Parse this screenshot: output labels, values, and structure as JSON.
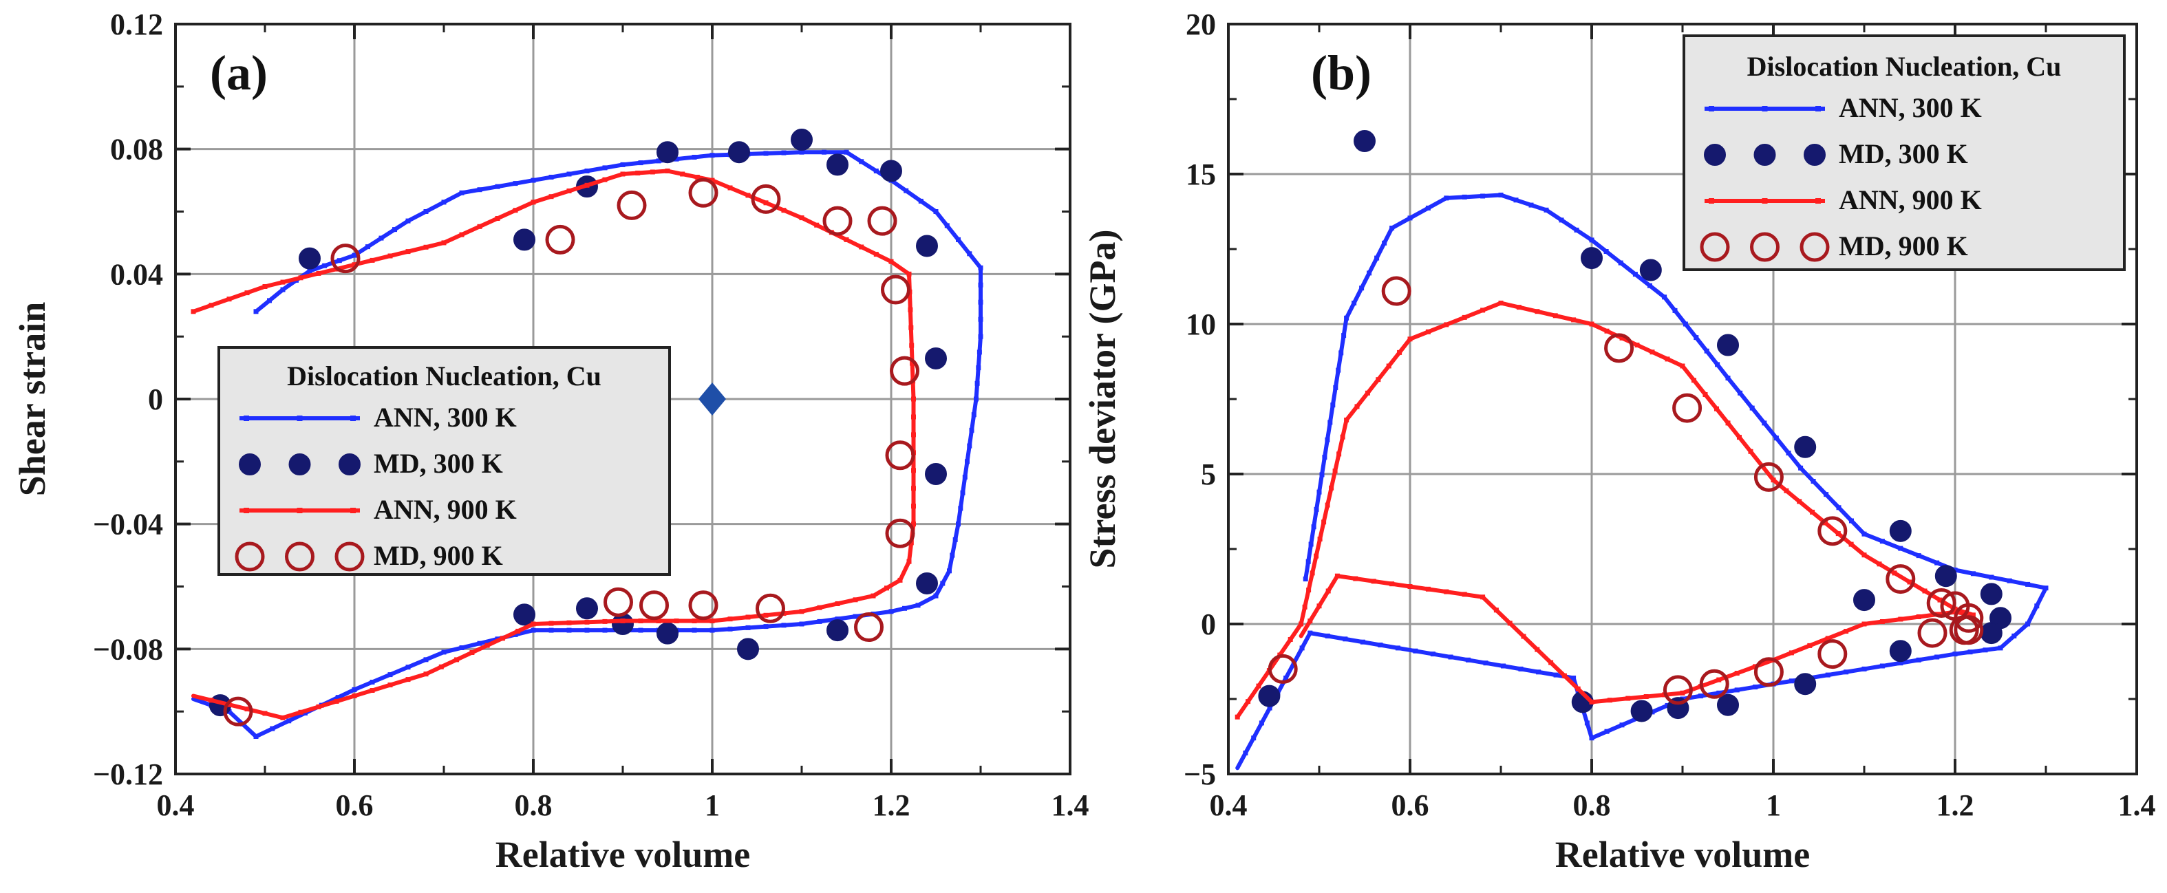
{
  "chart_data": [
    {
      "type": "line",
      "panel_label": "(a)",
      "xlabel": "Relative volume",
      "ylabel": "Shear strain",
      "xlim": [
        0.4,
        1.4
      ],
      "ylim": [
        -0.12,
        0.12
      ],
      "xticks": [
        0.4,
        0.6,
        0.8,
        1,
        1.2,
        1.4
      ],
      "xtick_labels": [
        "0.4",
        "0.6",
        "0.8",
        "1",
        "1.2",
        "1.4"
      ],
      "yticks": [
        -0.12,
        -0.08,
        -0.04,
        0,
        0.04,
        0.08,
        0.12
      ],
      "ytick_labels": [
        "−0.12",
        "−0.08",
        "−0.04",
        "0",
        "0.04",
        "0.08",
        "0.12"
      ],
      "grid": true,
      "legend": {
        "title": "Dislocation Nucleation, Cu",
        "entries": [
          "ANN, 300 K",
          "MD, 300 K",
          "ANN, 900 K",
          "MD, 900 K"
        ]
      },
      "marker_point": {
        "x": 1.0,
        "y": 0.0,
        "color": "#1f4fa8"
      },
      "series": [
        {
          "name": "ANN, 300 K",
          "style": "line",
          "color": "#1f2fff",
          "x": [
            0.49,
            0.52,
            0.55,
            0.6,
            0.66,
            0.72,
            0.8,
            0.9,
            1.0,
            1.1,
            1.15,
            1.2,
            1.25,
            1.3,
            1.3,
            1.295,
            1.285,
            1.275,
            1.265,
            1.25,
            1.23,
            1.2,
            1.1,
            1.0,
            0.9,
            0.8,
            0.7,
            0.6,
            0.49,
            0.46,
            0.42
          ],
          "y": [
            0.028,
            0.035,
            0.041,
            0.046,
            0.057,
            0.066,
            0.07,
            0.075,
            0.078,
            0.079,
            0.079,
            0.07,
            0.06,
            0.042,
            0.02,
            0.0,
            -0.02,
            -0.04,
            -0.055,
            -0.063,
            -0.066,
            -0.068,
            -0.072,
            -0.074,
            -0.074,
            -0.074,
            -0.081,
            -0.093,
            -0.108,
            -0.1,
            -0.096
          ]
        },
        {
          "name": "MD, 300 K",
          "style": "filled",
          "color": "#15196e",
          "x": [
            0.55,
            0.79,
            0.86,
            0.95,
            1.03,
            1.1,
            1.14,
            1.2,
            1.24,
            1.25,
            1.25,
            1.24,
            1.14,
            1.04,
            0.95,
            0.9,
            0.86,
            0.79,
            0.45
          ],
          "y": [
            0.045,
            0.051,
            0.068,
            0.079,
            0.079,
            0.083,
            0.075,
            0.073,
            0.049,
            0.013,
            -0.024,
            -0.059,
            -0.074,
            -0.08,
            -0.075,
            -0.072,
            -0.067,
            -0.069,
            -0.098
          ]
        },
        {
          "name": "ANN, 900 K",
          "style": "line",
          "color": "#ff1f1f",
          "x": [
            0.42,
            0.5,
            0.6,
            0.7,
            0.8,
            0.9,
            0.95,
            1.0,
            1.1,
            1.2,
            1.22,
            1.225,
            1.225,
            1.22,
            1.21,
            1.18,
            1.1,
            1.0,
            0.9,
            0.8,
            0.68,
            0.52,
            0.42
          ],
          "y": [
            0.028,
            0.036,
            0.043,
            0.05,
            0.063,
            0.072,
            0.073,
            0.07,
            0.058,
            0.044,
            0.04,
            0.0,
            -0.04,
            -0.052,
            -0.058,
            -0.063,
            -0.068,
            -0.071,
            -0.071,
            -0.072,
            -0.088,
            -0.102,
            -0.095
          ]
        },
        {
          "name": "MD, 900 K",
          "style": "open",
          "color": "#a8191e",
          "x": [
            0.59,
            0.83,
            0.91,
            0.99,
            1.06,
            1.14,
            1.19,
            1.205,
            1.215,
            1.21,
            1.21,
            1.175,
            1.065,
            0.99,
            0.935,
            0.895,
            0.47
          ],
          "y": [
            0.045,
            0.051,
            0.062,
            0.066,
            0.064,
            0.057,
            0.057,
            0.035,
            0.009,
            -0.018,
            -0.043,
            -0.073,
            -0.067,
            -0.066,
            -0.066,
            -0.065,
            -0.1
          ]
        }
      ]
    },
    {
      "type": "line",
      "panel_label": "(b)",
      "xlabel": "Relative volume",
      "ylabel": "Stress deviator (GPa)",
      "xlim": [
        0.4,
        1.4
      ],
      "ylim": [
        -5,
        20
      ],
      "xticks": [
        0.4,
        0.6,
        0.8,
        1,
        1.2,
        1.4
      ],
      "xtick_labels": [
        "0.4",
        "0.6",
        "0.8",
        "1",
        "1.2",
        "1.4"
      ],
      "yticks": [
        -5,
        0,
        5,
        10,
        15,
        20
      ],
      "ytick_labels": [
        "−5",
        "0",
        "5",
        "10",
        "15",
        "20"
      ],
      "grid": true,
      "legend": {
        "title": "Dislocation Nucleation, Cu",
        "entries": [
          "ANN, 300 K",
          "MD, 300 K",
          "ANN, 900 K",
          "MD, 900 K"
        ]
      },
      "series": [
        {
          "name": "ANN, 300 K",
          "style": "line",
          "color": "#1f2fff",
          "x": [
            0.485,
            0.53,
            0.58,
            0.64,
            0.7,
            0.75,
            0.8,
            0.88,
            0.95,
            1.03,
            1.1,
            1.2,
            1.3,
            1.28,
            1.25,
            1.2,
            1.1,
            0.9,
            0.8,
            0.78,
            0.49,
            0.41
          ],
          "y": [
            1.5,
            10.2,
            13.2,
            14.2,
            14.3,
            13.8,
            12.8,
            10.9,
            8.2,
            5.2,
            3.0,
            1.8,
            1.2,
            0.0,
            -0.8,
            -1.0,
            -1.5,
            -2.5,
            -3.8,
            -1.8,
            -0.3,
            -4.8
          ]
        },
        {
          "name": "MD, 300 K",
          "style": "filled",
          "color": "#15196e",
          "x": [
            0.55,
            0.8,
            0.865,
            0.95,
            1.035,
            1.14,
            1.19,
            1.24,
            1.25,
            1.24,
            1.14,
            1.1,
            1.035,
            0.95,
            0.895,
            0.855,
            0.79,
            0.445
          ],
          "y": [
            16.1,
            12.2,
            11.8,
            9.3,
            5.9,
            3.1,
            1.6,
            1.0,
            0.2,
            -0.3,
            -0.9,
            0.8,
            -2.0,
            -2.7,
            -2.8,
            -2.9,
            -2.6,
            -2.4
          ]
        },
        {
          "name": "ANN, 900 K",
          "style": "line",
          "color": "#ff1f1f",
          "x": [
            0.41,
            0.48,
            0.53,
            0.6,
            0.7,
            0.8,
            0.9,
            1.0,
            1.1,
            1.2,
            1.22,
            1.2,
            1.1,
            1.0,
            0.9,
            0.8,
            0.68,
            0.52,
            0.48
          ],
          "y": [
            -3.1,
            0.0,
            6.8,
            9.5,
            10.7,
            10.0,
            8.6,
            4.8,
            2.3,
            0.5,
            0.3,
            0.4,
            0.0,
            -1.2,
            -2.3,
            -2.6,
            0.9,
            1.6,
            -0.4
          ]
        },
        {
          "name": "MD, 900 K",
          "style": "open",
          "color": "#a8191e",
          "x": [
            0.585,
            0.83,
            0.905,
            0.995,
            1.065,
            1.14,
            1.185,
            1.2,
            1.215,
            1.21,
            1.215,
            1.175,
            1.065,
            0.995,
            0.935,
            0.895,
            0.46
          ],
          "y": [
            11.1,
            9.2,
            7.2,
            4.9,
            3.1,
            1.5,
            0.7,
            0.6,
            0.2,
            -0.2,
            -0.2,
            -0.3,
            -1.0,
            -1.6,
            -2.0,
            -2.2,
            -1.5
          ]
        }
      ]
    }
  ]
}
